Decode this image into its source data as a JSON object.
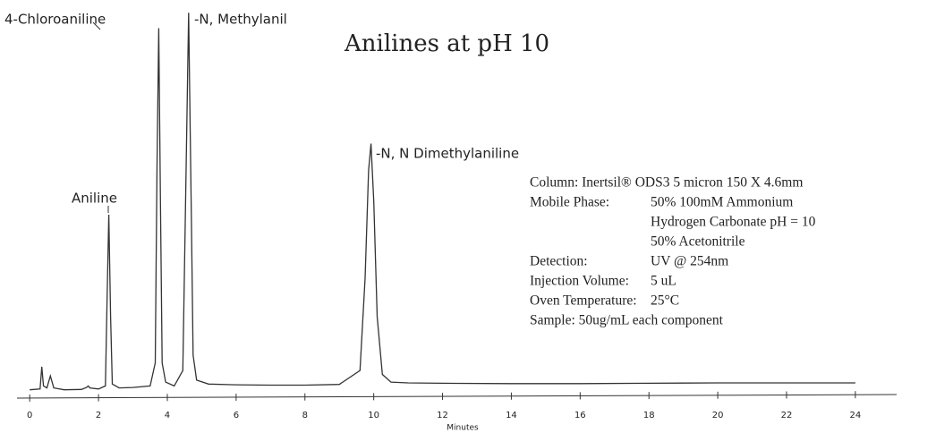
{
  "chart_data": {
    "type": "line",
    "title": "Anilines at pH 10",
    "x_label": "Minutes",
    "x": [
      0,
      0.3,
      0.35,
      0.4,
      0.5,
      0.6,
      0.7,
      1.0,
      1.5,
      1.65,
      1.7,
      1.75,
      2.0,
      2.2,
      2.25,
      2.3,
      2.35,
      2.4,
      2.6,
      3.0,
      3.5,
      3.65,
      3.7,
      3.75,
      3.8,
      3.85,
      3.95,
      4.2,
      4.45,
      4.55,
      4.62,
      4.7,
      4.75,
      4.85,
      5.2,
      6,
      7,
      8,
      9,
      9.6,
      9.75,
      9.85,
      9.92,
      10.0,
      10.1,
      10.25,
      10.5,
      11,
      12,
      14,
      16,
      18,
      20,
      22,
      24
    ],
    "values": [
      1,
      1.2,
      7,
      2,
      1.5,
      4.6,
      1.5,
      1.0,
      1.1,
      1.6,
      2.0,
      1.5,
      1.2,
      2,
      25,
      46.5,
      20,
      2.5,
      1.5,
      1.6,
      2,
      8,
      60,
      95,
      50,
      8,
      3,
      2,
      6,
      60,
      99,
      45,
      10,
      3.5,
      2.5,
      2.3,
      2.2,
      2.2,
      2.4,
      6,
      30,
      58,
      65,
      50,
      20,
      5,
      3,
      2.8,
      2.7,
      2.6,
      2.6,
      2.7,
      2.8,
      2.8,
      2.8
    ],
    "color": "#333333",
    "xlim": [
      -0.5,
      25.2
    ],
    "ylim": [
      0,
      100
    ],
    "xticks": [
      0,
      2,
      4,
      6,
      8,
      10,
      12,
      14,
      16,
      18,
      20,
      22,
      24
    ],
    "annotations": [
      "4-Chloroaniline",
      "-N, Methylanil",
      "Aniline",
      "-N, N Dimethylaniline"
    ],
    "conditions": [
      {
        "value": "Column: Inertsil® ODS3 5 micron 150 X 4.6mm"
      },
      {
        "label": "Mobile Phase:",
        "value": "50% 100mM Ammonium"
      },
      {
        "value": "Hydrogen Carbonate pH = 10"
      },
      {
        "value": "50% Acetonitrile"
      },
      {
        "label": "Detection:",
        "value": "UV @ 254nm"
      },
      {
        "label": "Injection Volume:",
        "value": "5 uL"
      },
      {
        "label": "Oven Temperature:",
        "value": "25°C"
      },
      {
        "value": "Sample: 50ug/mL each component"
      }
    ]
  }
}
